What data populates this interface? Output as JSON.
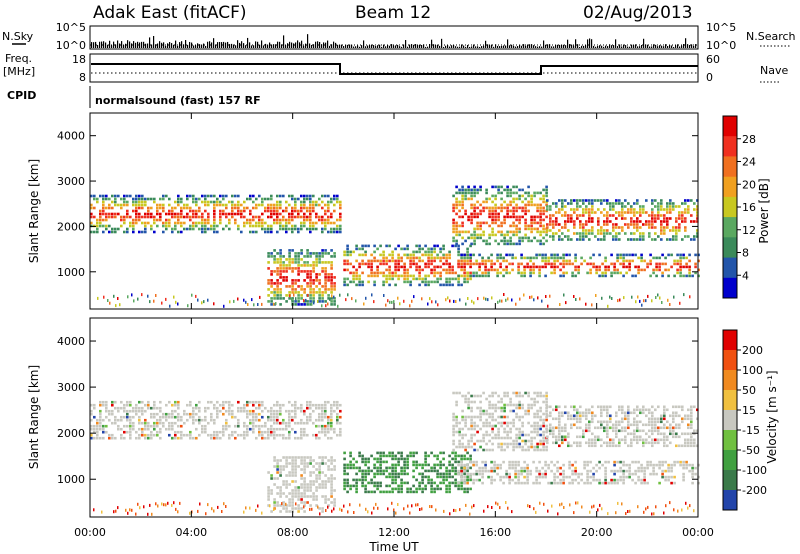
{
  "header": {
    "station": "Adak East (fitACF)",
    "beam": "Beam 12",
    "date": "02/Aug/2013"
  },
  "left_labels": {
    "nsky": "N.Sky",
    "freq": "Freq.",
    "freq_unit": "[MHz]",
    "cpid": "CPID"
  },
  "right_labels": {
    "nsearch": "N.Search",
    "nave": "Nave"
  },
  "cpid_text": "normalsound (fast) 157 RF",
  "noise_panel": {
    "left_ticks": [
      "10^5",
      "10^0"
    ],
    "right_ticks": [
      "10^5",
      "10^0"
    ]
  },
  "freq_panel": {
    "left_ticks": [
      "18",
      "8"
    ],
    "right_ticks": [
      "60",
      "0"
    ]
  },
  "x_axis": {
    "label": "Time UT",
    "ticks": [
      "00:00",
      "04:00",
      "08:00",
      "12:00",
      "16:00",
      "20:00",
      "00:00"
    ]
  },
  "power_panel": {
    "ylabel": "Slant Range [km]",
    "yticks": [
      "1000",
      "2000",
      "3000",
      "4000"
    ],
    "colorbar_label": "Power [dB]",
    "colorbar_ticks": [
      "4",
      "8",
      "12",
      "16",
      "20",
      "24",
      "28"
    ]
  },
  "velocity_panel": {
    "ylabel": "Slant Range [km]",
    "yticks": [
      "1000",
      "2000",
      "3000",
      "4000"
    ],
    "colorbar_label": "Velocity [m s⁻¹]",
    "colorbar_ticks": [
      "200",
      "100",
      "50",
      "15",
      "-15",
      "-50",
      "-100",
      "-200"
    ]
  },
  "chart_data": {
    "type": "heatmap",
    "x_range_hours": [
      0,
      24
    ],
    "y_range_km": [
      180,
      4500
    ],
    "power_colors": [
      "#0000cc",
      "#2255aa",
      "#3a8a5a",
      "#5aa860",
      "#c8c820",
      "#f0a020",
      "#f07020",
      "#f03020",
      "#e00000"
    ],
    "velocity_colors": [
      "#e00000",
      "#f05010",
      "#f08a20",
      "#f0c040",
      "#c8c8c0",
      "#70c040",
      "#40a040",
      "#3a7a4a",
      "#2244aa"
    ],
    "regions": [
      {
        "name": "band_1",
        "t": [
          0.0,
          9.9
        ],
        "km": [
          1900,
          2700
        ]
      },
      {
        "name": "band_2",
        "t": [
          7.0,
          9.7
        ],
        "km": [
          300,
          1500
        ]
      },
      {
        "name": "band_3",
        "t": [
          10.0,
          15.0
        ],
        "km": [
          700,
          1600
        ]
      },
      {
        "name": "band_4",
        "t": [
          14.3,
          18.0
        ],
        "km": [
          1600,
          2900
        ]
      },
      {
        "name": "band_5",
        "t": [
          18.0,
          24.0
        ],
        "km": [
          1700,
          2600
        ]
      },
      {
        "name": "band_6",
        "t": [
          14.5,
          24.0
        ],
        "km": [
          900,
          1400
        ]
      }
    ],
    "frequency_steps": [
      {
        "t": [
          0.0,
          10.0
        ],
        "mhz": "high"
      },
      {
        "t": [
          10.0,
          18.0
        ],
        "mhz": "low"
      },
      {
        "t": [
          18.0,
          24.0
        ],
        "mhz": "high"
      }
    ]
  }
}
